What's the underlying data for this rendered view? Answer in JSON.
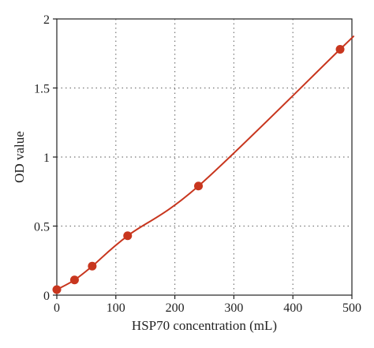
{
  "chart_data": {
    "type": "scatter",
    "xlabel": "HSP70 concentration (mL)",
    "ylabel": "OD value",
    "xlim": [
      0,
      500
    ],
    "ylim": [
      0,
      2
    ],
    "x_ticks": [
      "0",
      "100",
      "200",
      "300",
      "400",
      "500"
    ],
    "y_ticks": [
      "0",
      "0.5",
      "1",
      "1.5",
      "2"
    ],
    "grid": true,
    "grid_style": "dotted",
    "series": [
      {
        "points": [
          {
            "x": 0,
            "y": 0.04
          },
          {
            "x": 30,
            "y": 0.11
          },
          {
            "x": 60,
            "y": 0.21
          },
          {
            "x": 120,
            "y": 0.43
          },
          {
            "x": 240,
            "y": 0.79
          },
          {
            "x": 480,
            "y": 1.78
          }
        ],
        "color": "#c8361e",
        "fit_curve": true
      }
    ],
    "colors": {
      "marker": "#c8361e",
      "curve": "#c8361e",
      "axes": "#222222",
      "grid": "#777777"
    }
  }
}
